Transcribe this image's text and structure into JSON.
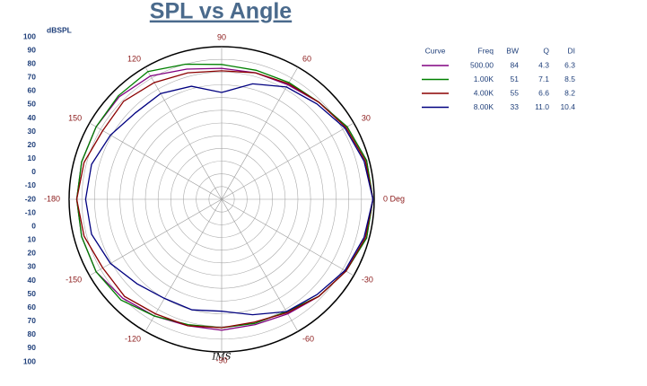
{
  "chart_data": {
    "type": "polar",
    "title": "SPL vs Angle",
    "r_label": "dBSPL",
    "watermark": "IMS",
    "rlim": [
      -20,
      100
    ],
    "rticks": [
      100,
      90,
      80,
      70,
      60,
      50,
      40,
      30,
      20,
      10,
      0,
      -10,
      -20
    ],
    "angle_ticks": [
      {
        "value": 0,
        "label": "0 Deg"
      },
      30,
      60,
      90,
      120,
      150,
      -180,
      -150,
      -120,
      -90,
      -60,
      -30
    ],
    "theta": [
      0,
      15,
      30,
      45,
      60,
      75,
      90,
      105,
      120,
      135,
      150,
      165,
      180,
      195,
      210,
      225,
      240,
      255,
      270,
      285,
      300,
      315,
      330,
      345
    ],
    "series": [
      {
        "name": "500.00",
        "color": "#800080",
        "values": [
          99,
          98,
          94,
          88,
          84,
          83,
          83,
          86,
          92,
          94,
          94,
          94,
          94,
          94,
          94,
          90,
          86,
          83,
          83,
          82,
          84,
          88,
          93,
          98
        ]
      },
      {
        "name": "1.00K",
        "color": "#008000",
        "values": [
          99,
          98,
          94,
          88,
          86,
          85,
          86,
          90,
          96,
          95,
          94,
          94,
          94,
          94,
          94,
          92,
          86,
          82,
          81,
          81,
          82,
          88,
          93,
          98
        ]
      },
      {
        "name": "4.00K",
        "color": "#8b0000",
        "values": [
          99,
          97,
          93,
          88,
          85,
          83,
          81,
          83,
          86,
          89,
          88,
          92,
          94,
          92,
          88,
          88,
          84,
          83,
          81,
          80,
          83,
          88,
          93,
          97
        ]
      },
      {
        "name": "8.00K",
        "color": "#000080",
        "values": [
          99,
          96,
          92,
          86,
          82,
          74,
          64,
          72,
          76,
          76,
          81,
          86,
          87,
          86,
          81,
          74,
          70,
          70,
          68,
          74,
          82,
          86,
          92,
          96
        ]
      }
    ],
    "legend_table": {
      "columns": [
        "Curve",
        "Freq",
        "BW",
        "Q",
        "DI"
      ],
      "rows": [
        [
          "84",
          "4.3",
          "6.3"
        ],
        [
          "51",
          "7.1",
          "8.5"
        ],
        [
          "55",
          "6.6",
          "8.2"
        ],
        [
          "33",
          "11.0",
          "10.4"
        ]
      ]
    }
  }
}
